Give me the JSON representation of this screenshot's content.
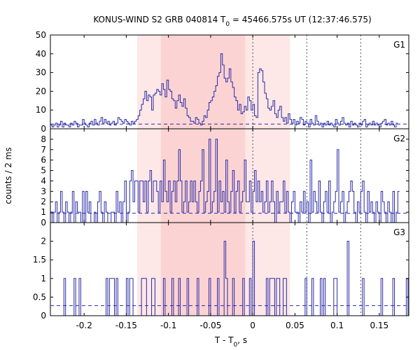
{
  "chart_data": {
    "type": "line",
    "title": "KONUS-WIND S2 GRB 040814 T0 = 45466.575s UT (12:37:46.575)",
    "title_parts": {
      "prefix": "KONUS-WIND S2 GRB 040814 T",
      "sub": "0",
      "suffix": " = 45466.575s UT (12:37:46.575)"
    },
    "xlabel_parts": {
      "prefix": "T - T",
      "sub": "0",
      "suffix": ", s"
    },
    "ylabel": "counts / 2 ms",
    "xlim": [
      -0.24,
      0.185
    ],
    "x_ticks": [
      -0.2,
      -0.15,
      -0.1,
      -0.05,
      0,
      0.05,
      0.1,
      0.15
    ],
    "x_tick_labels": [
      "-0.2",
      "-0.15",
      "-0.1",
      "-0.05",
      "0",
      "0.05",
      "0.1",
      "0.15"
    ],
    "vlines_dotted": [
      0.0,
      0.064,
      0.128
    ],
    "shaded_outer": [
      -0.137,
      0.044
    ],
    "shaded_inner": [
      -0.109,
      -0.009
    ],
    "colors": {
      "series": "#2b2ba6",
      "shade_outer": "#fde7e7",
      "shade_inner": "#fbd3d3",
      "axis": "#000000"
    },
    "bin_width_s": 0.002,
    "series": [
      {
        "name": "G1",
        "ylim": [
          0,
          50
        ],
        "y_ticks": [
          0,
          10,
          20,
          30,
          40,
          50
        ],
        "background": 2.5,
        "x_start": -0.24,
        "values": [
          2,
          1,
          2,
          3,
          1,
          2,
          4,
          1,
          3,
          2,
          2,
          1,
          3,
          2,
          4,
          3,
          1,
          2,
          2,
          5,
          3,
          2,
          1,
          3,
          4,
          2,
          5,
          3,
          2,
          4,
          6,
          3,
          5,
          3,
          4,
          2,
          3,
          4,
          2,
          3,
          6,
          5,
          4,
          3,
          5,
          4,
          3,
          2,
          4,
          3,
          4,
          5,
          7,
          10,
          13,
          16,
          20,
          15,
          18,
          17,
          10,
          18,
          19,
          21,
          20,
          18,
          24,
          21,
          17,
          26,
          21,
          20,
          16,
          15,
          11,
          15,
          18,
          14,
          12,
          16,
          11,
          7,
          6,
          4,
          4,
          3,
          6,
          5,
          3,
          2,
          4,
          7,
          6,
          10,
          14,
          15,
          17,
          20,
          23,
          28,
          30,
          40,
          34,
          27,
          25,
          27,
          32,
          25,
          22,
          17,
          15,
          10,
          13,
          8,
          9,
          12,
          10,
          17,
          15,
          10,
          13,
          7,
          6,
          30,
          32,
          31,
          25,
          19,
          16,
          11,
          10,
          12,
          15,
          8,
          6,
          10,
          12,
          6,
          4,
          6,
          3,
          8,
          5,
          3,
          5,
          2,
          4,
          3,
          6,
          5,
          2,
          4,
          3,
          1,
          5,
          3,
          2,
          7,
          4,
          2,
          3,
          1,
          3,
          2,
          4,
          2,
          3,
          2,
          1,
          5,
          3,
          2,
          4,
          6,
          3,
          2,
          3,
          1,
          4,
          2,
          3,
          2,
          1,
          3,
          2,
          4,
          5,
          1,
          2,
          3,
          2,
          4,
          2,
          3,
          2,
          1,
          3,
          4,
          5,
          2,
          3,
          2,
          4,
          2,
          1,
          3
        ]
      },
      {
        "name": "G2",
        "ylim": [
          0,
          9
        ],
        "y_ticks": [
          0,
          1,
          2,
          3,
          4,
          5,
          6,
          7,
          8
        ],
        "background": 0.9,
        "x_start": -0.24,
        "values": [
          1,
          0,
          1,
          2,
          0,
          1,
          3,
          1,
          0,
          2,
          1,
          0,
          1,
          3,
          0,
          2,
          1,
          1,
          0,
          3,
          0,
          3,
          1,
          2,
          0,
          0,
          1,
          0,
          2,
          3,
          1,
          0,
          2,
          1,
          0,
          0,
          1,
          1,
          0,
          3,
          1,
          2,
          0,
          2,
          4,
          0,
          1,
          4,
          5,
          2,
          4,
          4,
          1,
          4,
          4,
          2,
          4,
          1,
          4,
          5,
          2,
          4,
          4,
          3,
          1,
          4,
          2,
          6,
          3,
          2,
          4,
          1,
          3,
          4,
          2,
          4,
          7,
          4,
          1,
          2,
          4,
          1,
          2,
          4,
          2,
          4,
          2,
          1,
          3,
          4,
          7,
          1,
          2,
          3,
          8,
          1,
          2,
          3,
          8,
          1,
          4,
          2,
          3,
          1,
          6,
          2,
          1,
          3,
          5,
          1,
          3,
          4,
          1,
          2,
          3,
          6,
          2,
          2,
          4,
          1,
          3,
          5,
          2,
          4,
          2,
          3,
          1,
          2,
          4,
          1,
          2,
          4,
          2,
          0,
          3,
          1,
          2,
          2,
          4,
          1,
          3,
          1,
          0,
          2,
          3,
          1,
          1,
          0,
          2,
          1,
          3,
          1,
          2,
          0,
          6,
          1,
          3,
          2,
          1,
          4,
          1,
          0,
          2,
          3,
          1,
          4,
          0,
          1,
          2,
          3,
          7,
          1,
          2,
          3,
          0,
          1,
          2,
          3,
          4,
          3,
          1,
          0,
          2,
          1,
          3,
          4,
          1,
          0,
          3,
          1,
          2,
          1,
          0,
          2,
          1,
          0,
          3,
          2,
          1,
          0,
          2,
          1,
          0,
          3,
          0,
          1,
          3
        ]
      },
      {
        "name": "G3",
        "ylim": [
          0,
          2.5
        ],
        "y_ticks": [
          0,
          0.5,
          1,
          1.5,
          2
        ],
        "y_tick_labels": [
          "0",
          "0.5",
          "1",
          "1.5",
          "2"
        ],
        "background": 0.27,
        "x_start": -0.24,
        "values": [
          0,
          0,
          0,
          0,
          0,
          0,
          0,
          0,
          1,
          0,
          0,
          0,
          0,
          0,
          1,
          0,
          0,
          1,
          0,
          0,
          0,
          0,
          0,
          0,
          0,
          0,
          0,
          0,
          0,
          0,
          0,
          0,
          0,
          1,
          0,
          1,
          1,
          1,
          0,
          1,
          0,
          0,
          0,
          0,
          0,
          1,
          0,
          1,
          1,
          0,
          0,
          0,
          0,
          0,
          1,
          1,
          1,
          0,
          0,
          0,
          1,
          1,
          0,
          0,
          0,
          0,
          0,
          1,
          0,
          0,
          0,
          0,
          1,
          0,
          0,
          0,
          1,
          0,
          0,
          0,
          0,
          1,
          0,
          0,
          0,
          0,
          0,
          1,
          0,
          0,
          0,
          0,
          0,
          0,
          1,
          0,
          0,
          0,
          0,
          1,
          0,
          0,
          0,
          2,
          1,
          0,
          0,
          0,
          1,
          0,
          0,
          0,
          0,
          0,
          1,
          0,
          0,
          0,
          1,
          0,
          2,
          0,
          0,
          0,
          0,
          0,
          0,
          0,
          1,
          0,
          1,
          1,
          1,
          0,
          1,
          1,
          0,
          0,
          1,
          1,
          0,
          0,
          0,
          0,
          0,
          0,
          0,
          0,
          0,
          0,
          0,
          1,
          0,
          0,
          0,
          1,
          0,
          0,
          0,
          0,
          1,
          0,
          1,
          0,
          0,
          0,
          0,
          0,
          1,
          1,
          0,
          0,
          0,
          0,
          0,
          0,
          2,
          0,
          0,
          0,
          0,
          0,
          0,
          0,
          0,
          1,
          0,
          0,
          0,
          0,
          0,
          0,
          0,
          0,
          0,
          0,
          1,
          0,
          0,
          0,
          0,
          0,
          0,
          1,
          0,
          0,
          0,
          0,
          0,
          0,
          0,
          1,
          0
        ]
      }
    ]
  }
}
